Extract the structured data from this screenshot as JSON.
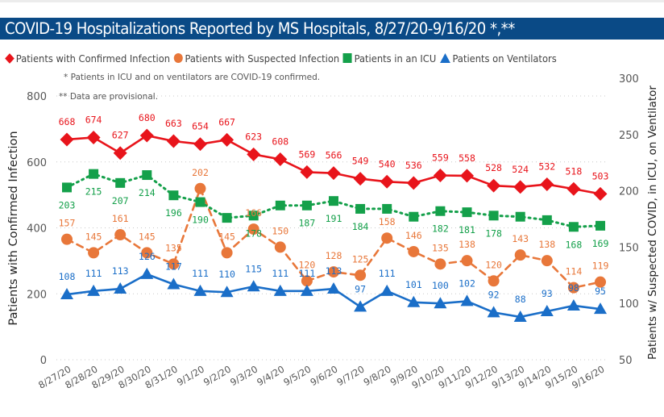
{
  "title": "COVID-19 Hospitalizations Reported by MS Hospitals, 8/27/20-9/16/20 *,**",
  "notes": [
    "* Patients in ICU and on ventilators are COVID-19 confirmed.",
    "** Data are provisional."
  ],
  "legend": [
    {
      "label": "Patients with Confirmed Infection",
      "marker": "diamond-icon",
      "color": "#e8141b"
    },
    {
      "label": "Patients with Suspected Infection",
      "marker": "circle-icon",
      "color": "#e8773a"
    },
    {
      "label": "Patients in an ICU",
      "marker": "square-icon",
      "color": "#14a04a"
    },
    {
      "label": "Patients on Ventilators",
      "marker": "triangle-icon",
      "color": "#1a6ec8"
    }
  ],
  "chart_data": {
    "type": "line",
    "title": "COVID-19 Hospitalizations Reported by MS Hospitals, 8/27/20-9/16/20 *,**",
    "xlabel": "",
    "ylabel": "Patients with Confirmed Infection",
    "y2label": "Patients w/ Suspected COVID, in ICU, on Ventilator",
    "ylim": [
      0,
      800
    ],
    "y2lim": [
      50,
      300
    ],
    "yticks": [
      "0",
      "200",
      "400",
      "600",
      "800"
    ],
    "y2ticks": [
      "50",
      "100",
      "150",
      "200",
      "250",
      "300"
    ],
    "grid": true,
    "legend_position": "top",
    "x": [
      "8/27/20",
      "8/28/20",
      "8/29/20",
      "8/30/20",
      "8/31/20",
      "9/1/20",
      "9/2/20",
      "9/3/20",
      "9/4/20",
      "9/5/20",
      "9/6/20",
      "9/7/20",
      "9/8/20",
      "9/9/20",
      "9/10/20",
      "9/11/20",
      "9/12/20",
      "9/13/20",
      "9/14/20",
      "9/15/20",
      "9/16/20"
    ],
    "series": [
      {
        "name": "Patients with Confirmed Infection",
        "axis": "left",
        "color": "#e8141b",
        "marker": "diamond",
        "line": "solid",
        "values": [
          668,
          674,
          627,
          680,
          663,
          654,
          667,
          623,
          608,
          569,
          566,
          549,
          540,
          536,
          559,
          558,
          528,
          524,
          532,
          518,
          503
        ],
        "labels": [
          "668",
          "674",
          "627",
          "680",
          "663",
          "654",
          "667",
          "623",
          "608",
          "569",
          "566",
          "549",
          "540",
          "536",
          "559",
          "558",
          "528",
          "524",
          "532",
          "518",
          "503"
        ]
      },
      {
        "name": "Patients with Suspected Infection",
        "axis": "right",
        "color": "#e8773a",
        "marker": "circle",
        "line": "dashed",
        "values": [
          157,
          145,
          161,
          145,
          135,
          202,
          145,
          166,
          150,
          120,
          128,
          125,
          158,
          146,
          135,
          138,
          120,
          143,
          138,
          114,
          119
        ],
        "labels": [
          "157",
          "145",
          "161",
          "145",
          "135",
          "202",
          "145",
          "166",
          "150",
          "120",
          "128",
          "125",
          "158",
          "146",
          "135",
          "138",
          "120",
          "143",
          "138",
          "114",
          "119"
        ]
      },
      {
        "name": "Patients in an ICU",
        "axis": "right",
        "color": "#14a04a",
        "marker": "square",
        "line": "dotted",
        "values": [
          203,
          215,
          207,
          214,
          196,
          190,
          176,
          178,
          187,
          187,
          191,
          184,
          184,
          177,
          182,
          181,
          178,
          177,
          174,
          168,
          169
        ],
        "labels": [
          "203",
          "215",
          "207",
          "214",
          "196",
          "190",
          "",
          "178",
          "",
          "187",
          "191",
          "184",
          "",
          "",
          "182",
          "181",
          "178",
          "",
          "",
          "168",
          "169"
        ]
      },
      {
        "name": "Patients on Ventilators",
        "axis": "right",
        "color": "#1a6ec8",
        "marker": "triangle",
        "line": "solid",
        "values": [
          108,
          111,
          113,
          126,
          117,
          111,
          110,
          115,
          111,
          111,
          113,
          97,
          111,
          101,
          100,
          102,
          92,
          88,
          93,
          98,
          95
        ],
        "labels": [
          "108",
          "111",
          "113",
          "126",
          "117",
          "111",
          "110",
          "115",
          "111",
          "111",
          "113",
          "97",
          "111",
          "101",
          "100",
          "102",
          "92",
          "88",
          "93",
          "98",
          "95"
        ]
      }
    ]
  }
}
